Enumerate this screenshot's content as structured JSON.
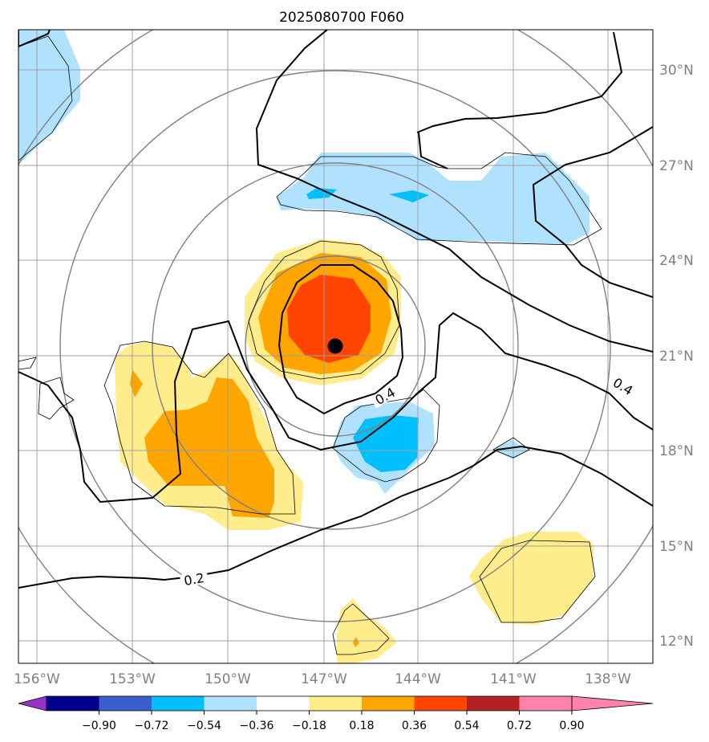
{
  "title": "2025080700 F060",
  "longitude_labels": [
    "156°W",
    "153°W",
    "150°W",
    "147°W",
    "144°W",
    "141°W",
    "138°W"
  ],
  "latitude_labels": [
    "30°N",
    "27°N",
    "24°N",
    "21°N",
    "18°N",
    "15°N",
    "12°N"
  ],
  "contour_labels": [
    "0.4",
    "0.4",
    "0.2"
  ],
  "colorbar": {
    "tick_labels": [
      "−0.90",
      "−0.72",
      "−0.54",
      "−0.36",
      "−0.18",
      "0.18",
      "0.36",
      "0.54",
      "0.72",
      "0.90"
    ],
    "colors": [
      "#9932cc",
      "#00008b",
      "#3a5fcd",
      "#00bfff",
      "#b0e2ff",
      "#ffffff",
      "#ffec8b",
      "#ffa500",
      "#ff4500",
      "#b22222",
      "#ff82ab"
    ]
  },
  "storm_center": {
    "lat": 21.3,
    "lon": "146.7°W"
  },
  "map_colors": {
    "light_blue": "#b0e2ff",
    "blue": "#00bfff",
    "light_yellow": "#ffec8b",
    "orange": "#ffa500",
    "red_orange": "#ff4500",
    "grid": "#a0a0a0",
    "range_rings": "#808080"
  }
}
